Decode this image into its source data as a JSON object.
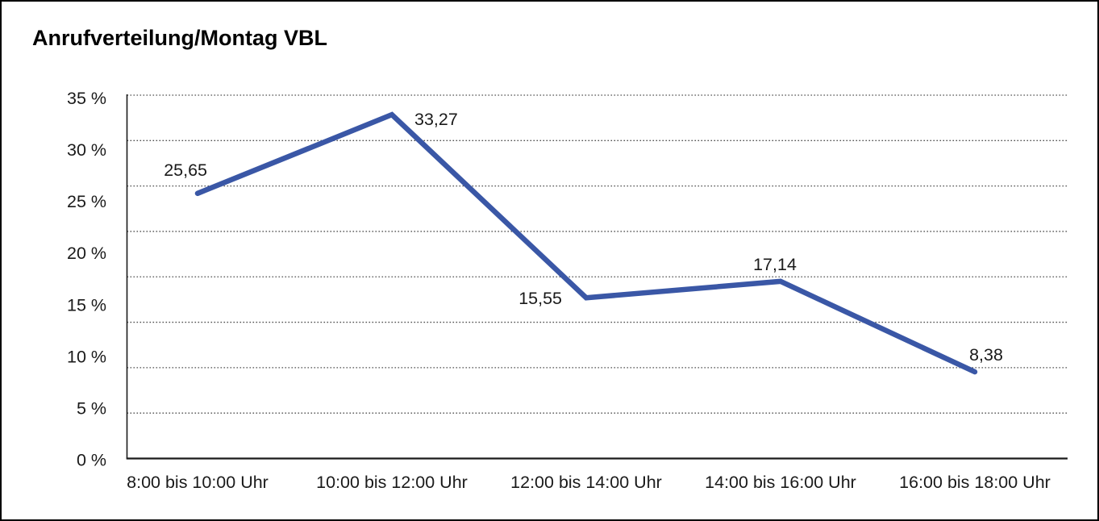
{
  "window": {
    "background": "#ffffff",
    "frame_color": "#000000"
  },
  "chart_data": {
    "type": "line",
    "title": "Anrufverteilung/Montag VBL",
    "categories": [
      "8:00 bis 10:00 Uhr",
      "10:00 bis 12:00 Uhr",
      "12:00 bis 14:00 Uhr",
      "14:00 bis 16:00 Uhr",
      "16:00 bis 18:00 Uhr"
    ],
    "values": [
      25.65,
      33.27,
      15.55,
      17.14,
      8.38
    ],
    "value_labels": [
      "25,65",
      "33,27",
      "15,55",
      "17,14",
      "8,38"
    ],
    "xlabel": "",
    "ylabel": "",
    "ylim": [
      0,
      35
    ],
    "y_tick_interval": 5,
    "y_tick_labels": [
      "0 %",
      "5 %",
      "10 %",
      "15 %",
      "20 %",
      "25 %",
      "30 %",
      "35 %"
    ],
    "grid": "horizontal-dotted",
    "horizontal_gridline_count": 9,
    "legend_position": "none",
    "series_color": "#3A57A6",
    "axis_color": "#1a1a1a",
    "grid_color": "#4d4d4d",
    "label_color": "#1a1a1a"
  }
}
